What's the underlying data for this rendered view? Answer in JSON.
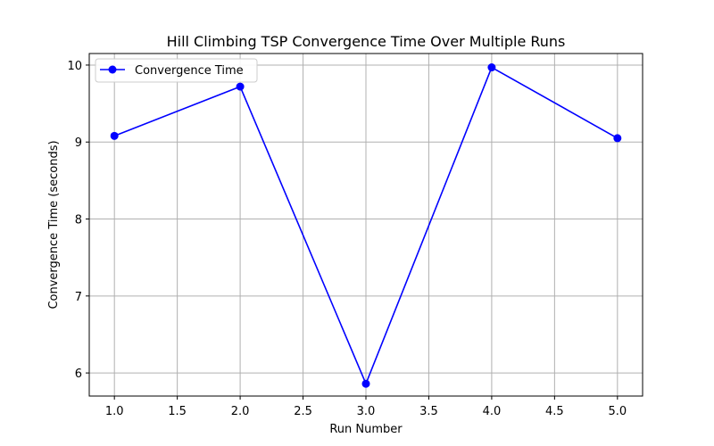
{
  "chart_data": {
    "type": "line",
    "title": "Hill Climbing TSP Convergence Time Over Multiple Runs",
    "xlabel": "Run Number",
    "ylabel": "Convergence Time (seconds)",
    "x": [
      1,
      2,
      3,
      4,
      5
    ],
    "series": [
      {
        "name": "Convergence Time",
        "values": [
          9.08,
          9.72,
          5.86,
          9.97,
          9.05
        ],
        "color": "#0000ff",
        "marker": "circle"
      }
    ],
    "xlim": [
      0.8,
      5.2
    ],
    "ylim": [
      5.7,
      10.15
    ],
    "xticks": [
      1.0,
      1.5,
      2.0,
      2.5,
      3.0,
      3.5,
      4.0,
      4.5,
      5.0
    ],
    "xtick_labels": [
      "1.0",
      "1.5",
      "2.0",
      "2.5",
      "3.0",
      "3.5",
      "4.0",
      "4.5",
      "5.0"
    ],
    "yticks": [
      6,
      7,
      8,
      9,
      10
    ],
    "ytick_labels": [
      "6",
      "7",
      "8",
      "9",
      "10"
    ],
    "grid": true,
    "legend_position": "top-left"
  }
}
